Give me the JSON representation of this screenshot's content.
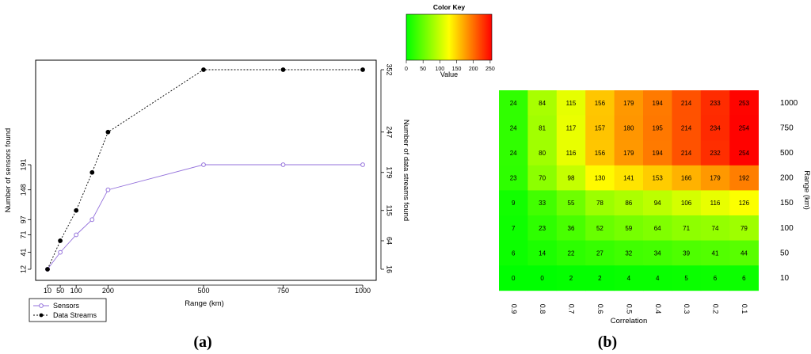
{
  "chart_data": [
    {
      "type": "line",
      "panel_label": "(a)",
      "xlabel": "Range (km)",
      "ylabel": "Number of sensors found",
      "y2label": "Number of data streams found",
      "x_ticks": [
        "10",
        "50",
        "100",
        "200",
        "500",
        "750",
        "1000"
      ],
      "y_ticks": [
        "12",
        "41",
        "71",
        "97",
        "148",
        "191"
      ],
      "y2_ticks": [
        "16",
        "64",
        "115",
        "179",
        "247",
        "352"
      ],
      "grid": false,
      "legend_position": "bottom-left",
      "series": [
        {
          "name": "Sensors",
          "axis": "left",
          "color": "#9370db",
          "marker": "open-circle",
          "line": "solid",
          "points": [
            [
              10,
              12
            ],
            [
              50,
              41
            ],
            [
              100,
              71
            ],
            [
              150,
              97
            ],
            [
              200,
              148
            ],
            [
              500,
              191
            ],
            [
              750,
              191
            ],
            [
              1000,
              191
            ]
          ]
        },
        {
          "name": "Data Streams",
          "axis": "right",
          "color": "#000000",
          "marker": "filled-circle",
          "line": "dashed",
          "points": [
            [
              10,
              16
            ],
            [
              50,
              64
            ],
            [
              100,
              115
            ],
            [
              150,
              179
            ],
            [
              200,
              247
            ],
            [
              500,
              352
            ],
            [
              750,
              352
            ],
            [
              1000,
              352
            ]
          ]
        }
      ]
    },
    {
      "type": "heatmap",
      "panel_label": "(b)",
      "xlabel": "Correlation",
      "ylabel": "Range (km)",
      "x_categories": [
        "0.9",
        "0.8",
        "0.7",
        "0.6",
        "0.5",
        "0.4",
        "0.3",
        "0.2",
        "0.1"
      ],
      "y_categories": [
        "1000",
        "750",
        "500",
        "200",
        "150",
        "100",
        "50",
        "10"
      ],
      "values": [
        [
          24,
          84,
          115,
          156,
          179,
          194,
          214,
          233,
          253
        ],
        [
          24,
          81,
          117,
          157,
          180,
          195,
          214,
          234,
          254
        ],
        [
          24,
          80,
          116,
          156,
          179,
          194,
          214,
          232,
          254
        ],
        [
          23,
          70,
          98,
          130,
          141,
          153,
          166,
          179,
          192
        ],
        [
          9,
          33,
          55,
          78,
          86,
          94,
          106,
          116,
          126
        ],
        [
          7,
          23,
          36,
          52,
          59,
          64,
          71,
          74,
          79
        ],
        [
          6,
          14,
          22,
          27,
          32,
          34,
          39,
          41,
          44
        ],
        [
          0,
          0,
          2,
          2,
          4,
          4,
          5,
          6,
          6
        ]
      ],
      "color_key": {
        "title": "Color Key",
        "label": "Value",
        "ticks": [
          "0",
          "50",
          "100",
          "150",
          "200",
          "250"
        ],
        "range": [
          0,
          255
        ],
        "colors": [
          "#00ff00",
          "#ffff00",
          "#ff0000"
        ]
      }
    }
  ]
}
